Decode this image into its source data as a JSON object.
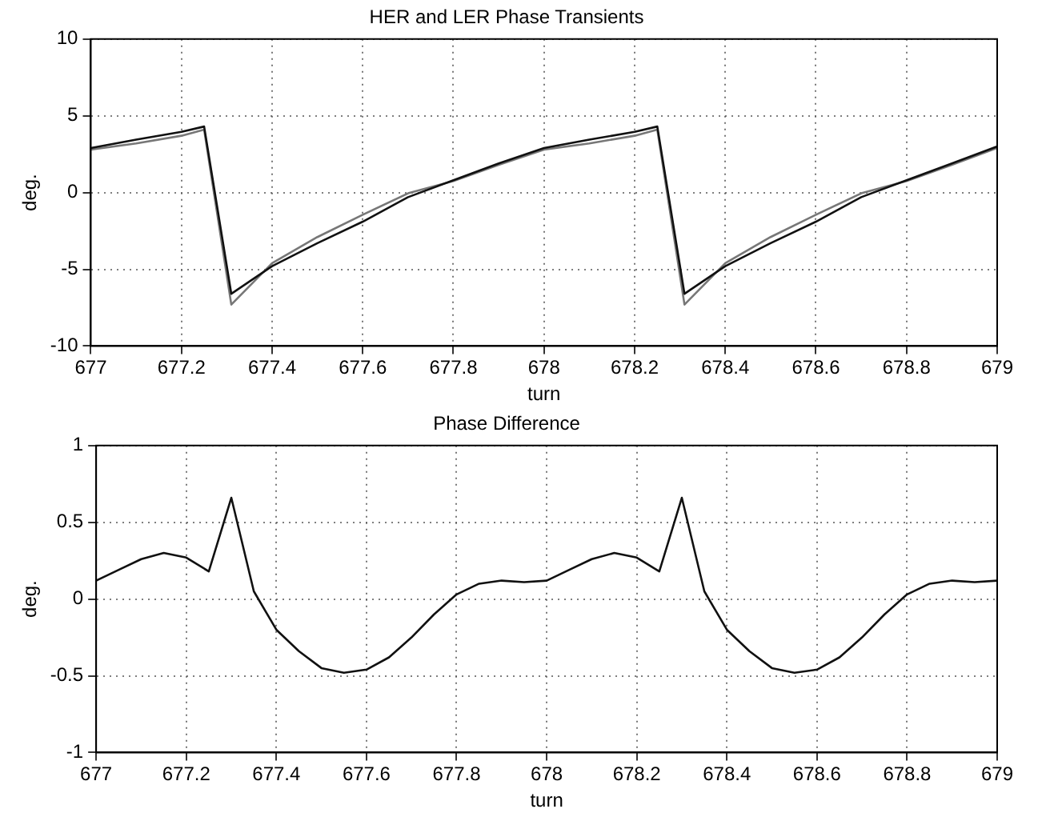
{
  "chart_data": [
    {
      "type": "line",
      "title": "HER and LER Phase Transients",
      "xlabel": "turn",
      "ylabel": "deg.",
      "xlim": [
        677,
        679
      ],
      "xticks": [
        677,
        677.2,
        677.4,
        677.6,
        677.8,
        678,
        678.2,
        678.4,
        678.6,
        678.8,
        679
      ],
      "ylim": [
        -10,
        10
      ],
      "yticks": [
        -10,
        -5,
        0,
        5,
        10
      ],
      "grid": true,
      "series": [
        {
          "color": "#111111",
          "x": [
            677,
            677.1,
            677.2,
            677.25,
            677.31,
            677.4,
            677.5,
            677.6,
            677.7,
            677.8,
            677.9,
            678,
            678.1,
            678.2,
            678.25,
            678.31,
            678.4,
            678.5,
            678.6,
            678.7,
            678.8,
            678.9,
            679
          ],
          "values": [
            2.9,
            3.45,
            3.95,
            4.3,
            -6.6,
            -4.8,
            -3.3,
            -1.9,
            -0.3,
            0.8,
            1.9,
            2.9,
            3.45,
            3.95,
            4.3,
            -6.6,
            -4.8,
            -3.3,
            -1.9,
            -0.3,
            0.8,
            1.9,
            3.0
          ]
        },
        {
          "color": "#777777",
          "x": [
            677,
            677.1,
            677.2,
            677.25,
            677.31,
            677.4,
            677.5,
            677.6,
            677.7,
            677.8,
            677.9,
            678,
            678.1,
            678.2,
            678.25,
            678.31,
            678.4,
            678.5,
            678.6,
            678.7,
            678.8,
            678.9,
            679
          ],
          "values": [
            2.8,
            3.2,
            3.7,
            4.1,
            -7.3,
            -4.6,
            -2.9,
            -1.45,
            -0.05,
            0.75,
            1.8,
            2.8,
            3.2,
            3.7,
            4.1,
            -7.3,
            -4.6,
            -2.9,
            -1.45,
            -0.05,
            0.75,
            1.8,
            2.9
          ]
        }
      ]
    },
    {
      "type": "line",
      "title": "Phase Difference",
      "xlabel": "turn",
      "ylabel": "deg.",
      "xlim": [
        677,
        679
      ],
      "xticks": [
        677,
        677.2,
        677.4,
        677.6,
        677.8,
        678,
        678.2,
        678.4,
        678.6,
        678.8,
        679
      ],
      "ylim": [
        -1,
        1
      ],
      "yticks": [
        -1,
        -0.5,
        0,
        0.5,
        1
      ],
      "grid": true,
      "series": [
        {
          "color": "#111111",
          "x": [
            677,
            677.05,
            677.1,
            677.15,
            677.2,
            677.25,
            677.3,
            677.35,
            677.4,
            677.45,
            677.5,
            677.55,
            677.6,
            677.65,
            677.7,
            677.75,
            677.8,
            677.85,
            677.9,
            677.95,
            678,
            678.05,
            678.1,
            678.15,
            678.2,
            678.25,
            678.3,
            678.35,
            678.4,
            678.45,
            678.5,
            678.55,
            678.6,
            678.65,
            678.7,
            678.75,
            678.8,
            678.85,
            678.9,
            678.95,
            679
          ],
          "values": [
            0.12,
            0.19,
            0.26,
            0.3,
            0.27,
            0.18,
            0.66,
            0.05,
            -0.2,
            -0.34,
            -0.45,
            -0.48,
            -0.46,
            -0.38,
            -0.25,
            -0.1,
            0.03,
            0.1,
            0.12,
            0.11,
            0.12,
            0.19,
            0.26,
            0.3,
            0.27,
            0.18,
            0.66,
            0.05,
            -0.2,
            -0.34,
            -0.45,
            -0.48,
            -0.46,
            -0.38,
            -0.25,
            -0.1,
            0.03,
            0.1,
            0.12,
            0.11,
            0.12
          ]
        }
      ]
    }
  ]
}
